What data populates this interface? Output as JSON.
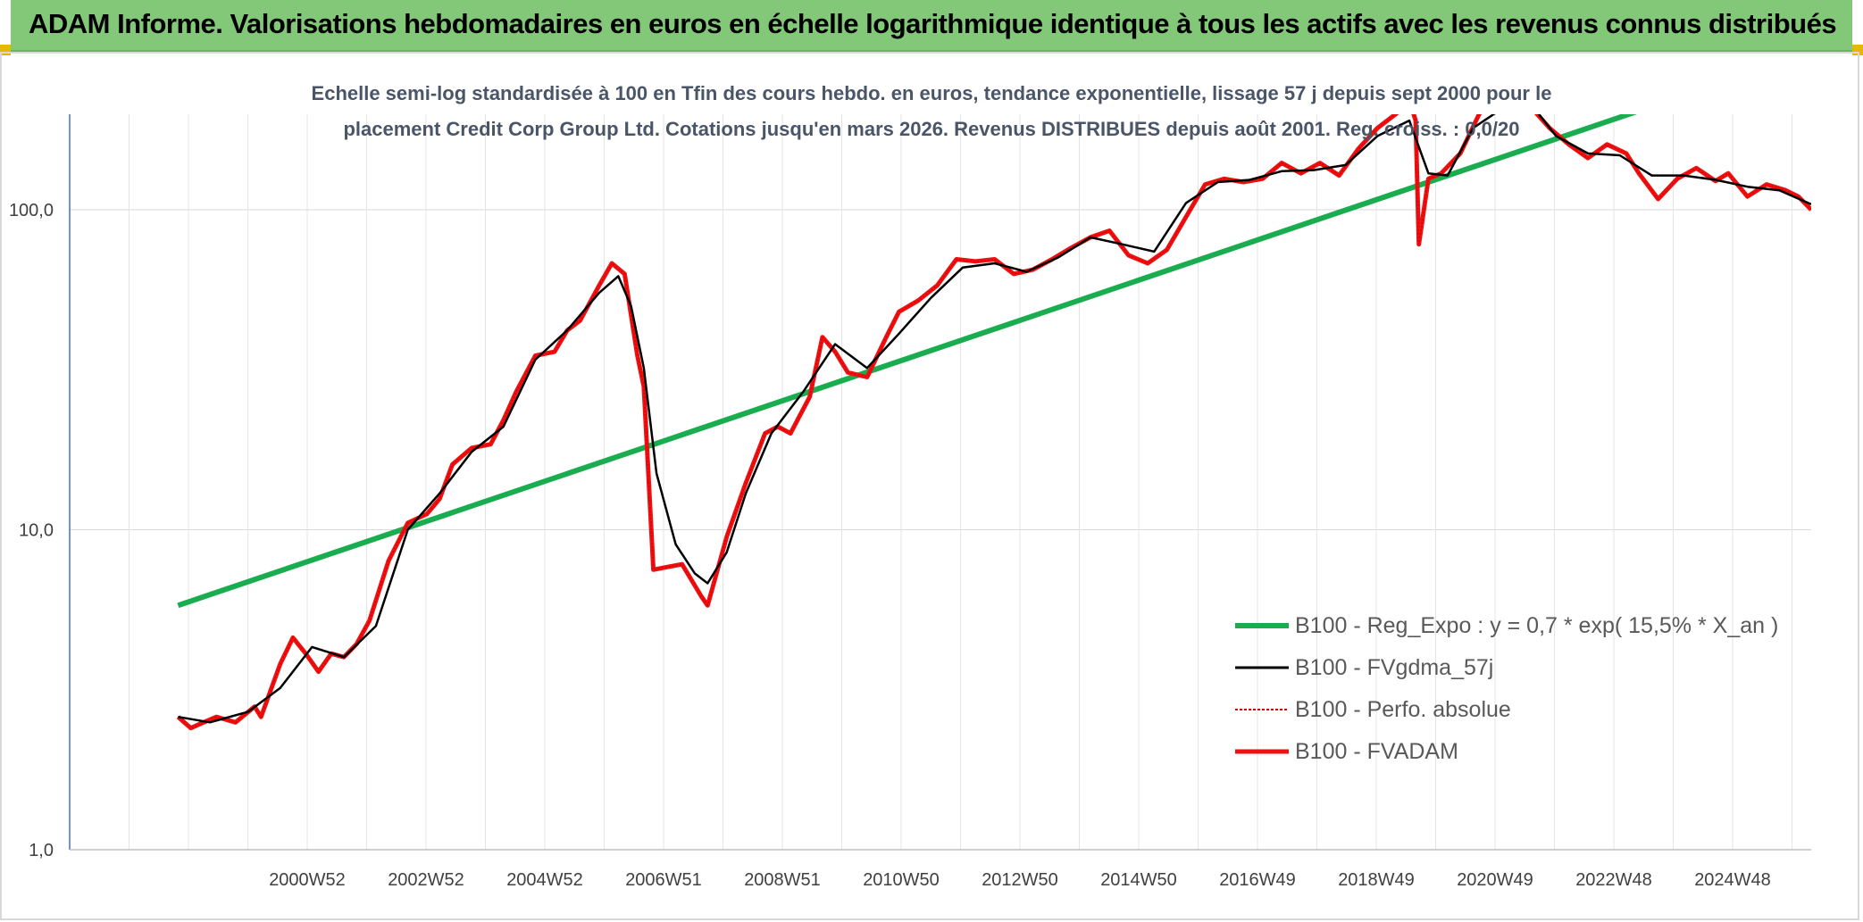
{
  "header": {
    "title": "ADAM Informe. Valorisations hebdomadaires en euros en échelle logarithmique identique à tous les actifs avec les revenus connus distribués"
  },
  "colors": {
    "header_bg": "#82c878",
    "regression": "#1aad4f",
    "smoothed": "#000000",
    "perf": "#e00000",
    "fvadam": "#ee1111"
  },
  "chart_data": {
    "type": "line",
    "title_lines": [
      "Echelle semi-log standardisée à 100 en Tfin des cours hebdo. en euros, tendance exponentielle, lissage 57 j depuis sept 2000 pour le",
      "placement Credit Corp Group Ltd. Cotations jusqu'en mars 2026. Revenus DISTRIBUES depuis août 2001. Reg. croiss. : 0,0/20"
    ],
    "y_scale": "log",
    "ylim": [
      1,
      200
    ],
    "y_ticks": [
      "100,0",
      "10,0",
      "1,0"
    ],
    "x_ticks": [
      "2000W52",
      "2002W52",
      "2004W52",
      "2006W51",
      "2008W51",
      "2010W50",
      "2012W50",
      "2014W50",
      "2016W49",
      "2018W49",
      "2020W49",
      "2022W48",
      "2024W48"
    ],
    "xlim": [
      1999.0,
      2026.3
    ],
    "grid": true,
    "legend_position": "lower-right",
    "legend": [
      {
        "label": "B100 - Reg_Expo : y = 0,7 * exp( 15,5% *  X_an )",
        "style": "regression"
      },
      {
        "label": "B100 - FVgdma_57j",
        "style": "smoothed"
      },
      {
        "label": "B100 - Perfo. absolue",
        "style": "perf"
      },
      {
        "label": "B100 - FVADAM",
        "style": "fvadam"
      }
    ],
    "series": [
      {
        "name": "B100 - Reg_Expo : y = 0,7 * exp( 15,5% *  X_an )",
        "x": [
          2000.7,
          2026.3
        ],
        "values": [
          5.8,
          310
        ]
      },
      {
        "name": "B100 - FVADAM",
        "x": [
          2000.7,
          2000.9,
          2001.1,
          2001.3,
          2001.6,
          2001.9,
          2002.0,
          2002.3,
          2002.5,
          2002.7,
          2002.9,
          2003.1,
          2003.3,
          2003.5,
          2003.7,
          2004.0,
          2004.3,
          2004.6,
          2004.8,
          2005.0,
          2005.3,
          2005.6,
          2005.8,
          2006.0,
          2006.3,
          2006.6,
          2006.8,
          2007.0,
          2007.3,
          2007.5,
          2007.7,
          2007.9,
          2008.0,
          2008.15,
          2008.3,
          2008.6,
          2008.9,
          2009.0,
          2009.3,
          2009.6,
          2009.9,
          2010.1,
          2010.3,
          2010.6,
          2010.8,
          2011.0,
          2011.2,
          2011.5,
          2011.8,
          2012.0,
          2012.3,
          2012.6,
          2012.9,
          2013.2,
          2013.5,
          2013.8,
          2014.1,
          2014.4,
          2014.7,
          2015.0,
          2015.3,
          2015.6,
          2015.9,
          2016.2,
          2016.5,
          2016.8,
          2017.1,
          2017.4,
          2017.7,
          2018.0,
          2018.3,
          2018.6,
          2018.9,
          2019.2,
          2019.5,
          2019.8,
          2020.0,
          2020.1,
          2020.15,
          2020.3,
          2020.5,
          2020.8,
          2021.1,
          2021.4,
          2021.7,
          2021.9,
          2022.2,
          2022.5,
          2022.8,
          2023.1,
          2023.4,
          2023.6,
          2023.9,
          2024.2,
          2024.5,
          2024.8,
          2025.0,
          2025.3,
          2025.6,
          2025.9,
          2026.1,
          2026.3
        ],
        "values": [
          2.6,
          2.4,
          2.5,
          2.6,
          2.5,
          2.8,
          2.6,
          3.8,
          4.6,
          4.1,
          3.6,
          4.1,
          4.0,
          4.4,
          5.2,
          8.0,
          10.5,
          11.2,
          12.5,
          16.0,
          18.0,
          18.5,
          22.0,
          27.0,
          35.0,
          36.0,
          42.0,
          45.0,
          58.0,
          68.0,
          63.0,
          35.0,
          28.0,
          7.5,
          7.6,
          7.8,
          6.2,
          5.8,
          9.5,
          14.0,
          20.0,
          21.0,
          20.0,
          26.0,
          40.0,
          36.0,
          31.0,
          30.0,
          40.0,
          48.0,
          52.0,
          58.0,
          70.0,
          69.0,
          70.0,
          63.0,
          65.0,
          70.0,
          76.0,
          82.0,
          86.0,
          72.0,
          68.0,
          75.0,
          95.0,
          120.0,
          125.0,
          122.0,
          125.0,
          140.0,
          130.0,
          140.0,
          128.0,
          155.0,
          180.0,
          200.0,
          220.0,
          190.0,
          78.0,
          125.0,
          130.0,
          150.0,
          200.0,
          220.0,
          215.0,
          210.0,
          180.0,
          160.0,
          145.0,
          160.0,
          150.0,
          130.0,
          108.0,
          125.0,
          135.0,
          123.0,
          130.0,
          110.0,
          120.0,
          115.0,
          110.0,
          100.0
        ]
      },
      {
        "name": "B100 - FVgdma_57j",
        "x": [
          2000.7,
          2001.2,
          2001.8,
          2002.3,
          2002.8,
          2003.3,
          2003.8,
          2004.3,
          2004.8,
          2005.3,
          2005.8,
          2006.3,
          2006.8,
          2007.3,
          2007.6,
          2007.8,
          2008.0,
          2008.2,
          2008.5,
          2008.8,
          2009.0,
          2009.3,
          2009.6,
          2010.0,
          2010.5,
          2011.0,
          2011.5,
          2012.0,
          2012.5,
          2013.0,
          2013.5,
          2014.0,
          2014.5,
          2015.0,
          2015.5,
          2016.0,
          2016.5,
          2017.0,
          2017.5,
          2018.0,
          2018.5,
          2019.0,
          2019.5,
          2020.0,
          2020.3,
          2020.6,
          2021.0,
          2021.5,
          2021.9,
          2022.3,
          2022.8,
          2023.3,
          2023.8,
          2024.3,
          2024.8,
          2025.3,
          2025.8,
          2026.3
        ],
        "values": [
          2.6,
          2.5,
          2.7,
          3.2,
          4.3,
          4.0,
          5.0,
          10.0,
          13.0,
          17.5,
          21.0,
          34.0,
          42.0,
          55.0,
          62.0,
          50.0,
          32.0,
          15.0,
          9.0,
          7.3,
          6.8,
          8.5,
          13.0,
          20.0,
          27.0,
          38.0,
          32.0,
          41.0,
          53.0,
          66.0,
          68.0,
          64.0,
          71.0,
          82.0,
          78.0,
          74.0,
          105.0,
          122.0,
          124.0,
          132.0,
          133.0,
          138.0,
          170.0,
          190.0,
          130.0,
          128.0,
          180.0,
          210.0,
          215.0,
          170.0,
          150.0,
          148.0,
          128.0,
          128.0,
          124.0,
          118.0,
          115.0,
          104.0
        ]
      }
    ]
  }
}
